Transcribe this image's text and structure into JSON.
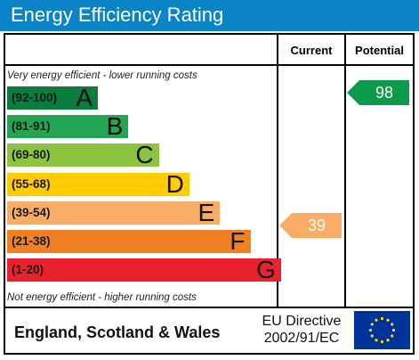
{
  "header": {
    "title": "Energy Efficiency Rating",
    "color": "#0a84c6"
  },
  "columns": {
    "current": "Current",
    "potential": "Potential"
  },
  "captions": {
    "top": "Very energy efficient - lower running costs",
    "bottom": "Not energy efficient - higher running costs"
  },
  "chart_data": {
    "type": "bar",
    "title": "Energy Efficiency Rating",
    "categories": [
      "A",
      "B",
      "C",
      "D",
      "E",
      "F",
      "G"
    ],
    "bands": [
      {
        "letter": "A",
        "range": "(92-100)",
        "color": "#0b7c3e"
      },
      {
        "letter": "B",
        "range": "(81-91)",
        "color": "#23a554"
      },
      {
        "letter": "C",
        "range": "(69-80)",
        "color": "#8cc43f"
      },
      {
        "letter": "D",
        "range": "(55-68)",
        "color": "#ffcc00"
      },
      {
        "letter": "E",
        "range": "(39-54)",
        "color": "#f9ac64"
      },
      {
        "letter": "F",
        "range": "(21-38)",
        "color": "#ef8024"
      },
      {
        "letter": "G",
        "range": "(1-20)",
        "color": "#e9222d"
      }
    ],
    "current": {
      "value": 39,
      "band": "E",
      "color": "#f9ac64"
    },
    "potential": {
      "value": 98,
      "band": "A",
      "color": "#0b9b4a"
    }
  },
  "footer": {
    "region": "England, Scotland & Wales",
    "directive_line1": "EU Directive",
    "directive_line2": "2002/91/EC",
    "flag_color": "#003399",
    "star_color": "#ffdd00"
  }
}
